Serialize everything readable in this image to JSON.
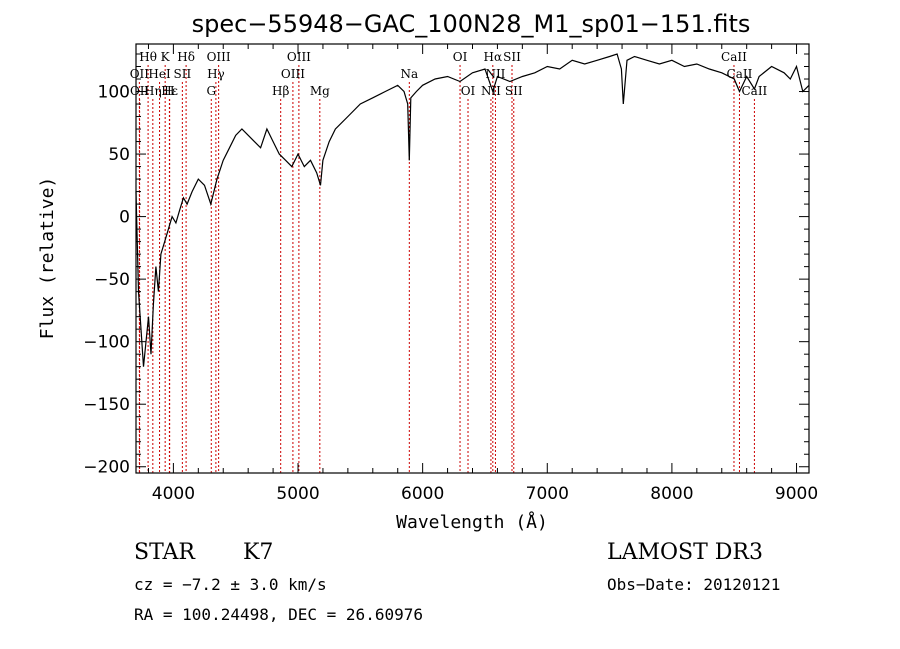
{
  "chart_data": {
    "type": "line",
    "title": "spec−55948−GAC_100N28_M1_sp01−151.fits",
    "xlabel": "Wavelength (Å)",
    "ylabel": "Flux (relative)",
    "xlim": [
      3700,
      9100
    ],
    "ylim": [
      -205,
      138
    ],
    "xticks": [
      4000,
      5000,
      6000,
      7000,
      8000,
      9000
    ],
    "yticks": [
      -200,
      -150,
      -100,
      -50,
      0,
      50,
      100
    ],
    "ytick_labels": [
      "−200",
      "−150",
      "−100",
      "−50",
      "0",
      "50",
      "100"
    ],
    "series": [
      {
        "name": "flux",
        "x": [
          3700,
          3720,
          3740,
          3760,
          3780,
          3800,
          3820,
          3840,
          3860,
          3880,
          3900,
          3930,
          3960,
          3990,
          4020,
          4050,
          4080,
          4110,
          4150,
          4200,
          4250,
          4300,
          4350,
          4400,
          4450,
          4500,
          4550,
          4600,
          4650,
          4700,
          4750,
          4800,
          4850,
          4900,
          4950,
          5000,
          5050,
          5100,
          5150,
          5180,
          5200,
          5250,
          5300,
          5400,
          5500,
          5600,
          5700,
          5800,
          5850,
          5880,
          5893,
          5905,
          5950,
          6000,
          6100,
          6200,
          6300,
          6400,
          6500,
          6563,
          6600,
          6700,
          6800,
          6900,
          7000,
          7100,
          7200,
          7300,
          7400,
          7500,
          7560,
          7595,
          7610,
          7640,
          7700,
          7800,
          7900,
          8000,
          8100,
          8200,
          8300,
          8400,
          8500,
          8542,
          8600,
          8662,
          8700,
          8800,
          8900,
          8950,
          9000,
          9050,
          9100
        ],
        "values": [
          20,
          -60,
          -90,
          -120,
          -100,
          -80,
          -110,
          -70,
          -40,
          -60,
          -30,
          -20,
          -10,
          0,
          -5,
          5,
          15,
          10,
          20,
          30,
          25,
          10,
          30,
          45,
          55,
          65,
          70,
          65,
          60,
          55,
          70,
          60,
          50,
          45,
          40,
          50,
          40,
          45,
          35,
          25,
          45,
          60,
          70,
          80,
          90,
          95,
          100,
          105,
          100,
          90,
          45,
          95,
          100,
          105,
          110,
          112,
          108,
          115,
          118,
          100,
          112,
          108,
          112,
          115,
          120,
          118,
          125,
          122,
          125,
          128,
          130,
          118,
          90,
          125,
          128,
          125,
          122,
          125,
          120,
          122,
          118,
          115,
          110,
          100,
          112,
          102,
          112,
          120,
          115,
          110,
          120,
          100,
          105
        ]
      }
    ],
    "lines_top": [
      {
        "label": "Hθ",
        "wave": 3797
      },
      {
        "label": "K",
        "wave": 3934
      },
      {
        "label": "Hδ",
        "wave": 4102
      },
      {
        "label": "OIII",
        "wave": 4363
      },
      {
        "label": "OIII",
        "wave": 5007
      },
      {
        "label": "OI",
        "wave": 6300
      },
      {
        "label": "Hα",
        "wave": 6563
      },
      {
        "label": "SII",
        "wave": 6717
      },
      {
        "label": "CaII",
        "wave": 8498
      }
    ],
    "lines_mid": [
      {
        "label": "OII",
        "wave": 3727
      },
      {
        "label": "HeI",
        "wave": 3889
      },
      {
        "label": "SII",
        "wave": 4072
      },
      {
        "label": "Hγ",
        "wave": 4341
      },
      {
        "label": "OIII",
        "wave": 4959
      },
      {
        "label": "Na",
        "wave": 5893
      },
      {
        "label": "NII",
        "wave": 6584
      },
      {
        "label": "CaII",
        "wave": 8542
      }
    ],
    "lines_low": [
      {
        "label": "OII",
        "wave": 3729
      },
      {
        "label": "Hε",
        "wave": 3970
      },
      {
        "label": "Hη",
        "wave": 3835
      },
      {
        "label": "H",
        "wave": 3968
      },
      {
        "label": "G",
        "wave": 4304
      },
      {
        "label": "Hβ",
        "wave": 4861
      },
      {
        "label": "Mg",
        "wave": 5175
      },
      {
        "label": "OI",
        "wave": 6364
      },
      {
        "label": "NII",
        "wave": 6548
      },
      {
        "label": "SII",
        "wave": 6731
      },
      {
        "label": "CaII",
        "wave": 8662
      }
    ]
  },
  "info": {
    "class": "STAR",
    "subclass": "K7",
    "survey": "LAMOST DR3",
    "cz": "cz = −7.2 ± 3.0 km/s",
    "obs_date": "Obs−Date: 20120121",
    "coords": "RA = 100.24498, DEC =  26.60976"
  },
  "colors": {
    "line": "#000000",
    "marker": "#cc0000",
    "axis": "#000000"
  }
}
